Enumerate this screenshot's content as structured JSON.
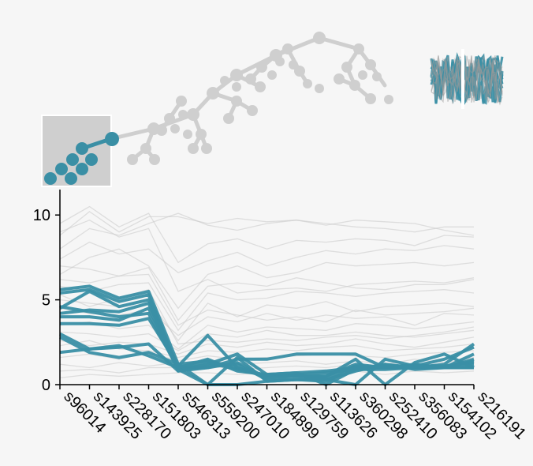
{
  "colors": {
    "highlight": "#3a8fa5",
    "context": "#c8c8c8",
    "tree": "#cfcfcf"
  },
  "chart_data": {
    "type": "line",
    "title": "",
    "xlabel": "",
    "ylabel": "",
    "ylim": [
      0,
      11.5
    ],
    "yticks": [
      0,
      5,
      10
    ],
    "categories": [
      "s96014",
      "s143925",
      "s228170",
      "s151803",
      "s546313",
      "s559200",
      "s247010",
      "s184899",
      "s129759",
      "s113626",
      "s360298",
      "s252410",
      "s356083",
      "s154102",
      "s216191"
    ],
    "highlighted_series": [
      {
        "values": [
          5.6,
          5.8,
          5.1,
          5.5,
          1.2,
          1.4,
          1.0,
          0.5,
          0.5,
          0.5,
          1.2,
          1.0,
          1.2,
          1.0,
          1.0
        ]
      },
      {
        "values": [
          5.4,
          5.6,
          4.9,
          5.3,
          0.9,
          1.2,
          1.8,
          0.6,
          0.7,
          0.8,
          1.0,
          1.1,
          1.0,
          1.0,
          1.0
        ]
      },
      {
        "values": [
          4.5,
          5.5,
          4.6,
          5.0,
          1.0,
          1.0,
          1.5,
          1.5,
          1.8,
          1.8,
          1.8,
          1.0,
          1.0,
          1.0,
          1.5
        ]
      },
      {
        "values": [
          4.2,
          4.4,
          4.3,
          4.8,
          0.8,
          1.1,
          1.2,
          0.3,
          0.3,
          0.3,
          0.8,
          1.2,
          0.9,
          1.0,
          1.8
        ]
      },
      {
        "values": [
          4.0,
          4.0,
          3.8,
          4.5,
          1.0,
          1.3,
          0.9,
          0.5,
          0.6,
          0.7,
          0.9,
          0.9,
          1.0,
          1.0,
          1.2
        ]
      },
      {
        "values": [
          3.6,
          3.6,
          3.5,
          3.9,
          1.1,
          2.9,
          1.0,
          0.5,
          0.5,
          0.4,
          1.1,
          1.0,
          1.1,
          1.1,
          1.3
        ]
      },
      {
        "values": [
          4.6,
          4.3,
          4.0,
          4.2,
          0.9,
          0.0,
          1.6,
          0.2,
          0.3,
          0.3,
          0.0,
          1.5,
          1.1,
          1.5,
          2.2
        ]
      },
      {
        "values": [
          3.0,
          2.1,
          2.2,
          2.4,
          0.8,
          1.0,
          1.3,
          0.4,
          0.5,
          0.5,
          1.5,
          0.0,
          1.3,
          1.8,
          1.0
        ]
      },
      {
        "values": [
          2.8,
          1.9,
          1.6,
          1.9,
          1.2,
          0.0,
          0.0,
          0.2,
          0.3,
          0.2,
          1.0,
          1.0,
          1.0,
          1.0,
          1.4
        ]
      },
      {
        "values": [
          1.9,
          2.1,
          2.3,
          1.7,
          1.0,
          1.5,
          0.8,
          0.6,
          0.7,
          0.0,
          0.9,
          1.2,
          1.0,
          1.2,
          2.4
        ]
      }
    ],
    "context_series": [
      {
        "values": [
          9.5,
          10.5,
          9.3,
          10.1,
          7.2,
          8.3,
          8.6,
          8.0,
          8.5,
          8.4,
          8.6,
          8.5,
          8.2,
          8.8,
          8.7
        ]
      },
      {
        "values": [
          8.8,
          10.2,
          9.0,
          9.9,
          9.9,
          9.5,
          9.8,
          9.6,
          9.7,
          9.5,
          9.3,
          9.2,
          9.0,
          9.3,
          9.3
        ]
      },
      {
        "values": [
          8.0,
          9.2,
          8.8,
          9.5,
          10.1,
          9.4,
          9.1,
          9.5,
          9.7,
          9.4,
          9.7,
          9.6,
          9.5,
          9.1,
          8.8
        ]
      },
      {
        "values": [
          7.4,
          8.4,
          7.7,
          8.0,
          6.6,
          7.3,
          7.8,
          7.0,
          7.5,
          7.9,
          7.7,
          8.0,
          7.9,
          8.2,
          8.0
        ]
      },
      {
        "values": [
          6.5,
          7.5,
          8.0,
          7.0,
          4.5,
          6.5,
          7.0,
          6.3,
          6.6,
          7.2,
          7.0,
          7.1,
          7.2,
          7.0,
          7.2
        ]
      },
      {
        "values": [
          6.2,
          6.0,
          6.4,
          6.9,
          3.8,
          5.8,
          6.0,
          5.8,
          6.3,
          6.0,
          5.7,
          5.6,
          5.9,
          5.9,
          6.2
        ]
      },
      {
        "values": [
          5.8,
          5.5,
          5.9,
          6.0,
          3.2,
          5.4,
          5.0,
          5.1,
          5.5,
          5.4,
          5.2,
          5.4,
          5.5,
          5.6,
          5.4
        ]
      },
      {
        "values": [
          5.0,
          4.8,
          4.6,
          5.0,
          2.6,
          4.8,
          4.0,
          4.7,
          4.5,
          4.9,
          4.3,
          4.6,
          4.7,
          4.8,
          4.6
        ]
      },
      {
        "values": [
          4.5,
          4.2,
          4.1,
          4.4,
          2.9,
          4.0,
          3.7,
          4.2,
          3.8,
          4.1,
          3.9,
          4.0,
          3.5,
          4.2,
          4.1
        ]
      },
      {
        "values": [
          3.5,
          3.7,
          3.3,
          3.5,
          2.1,
          3.5,
          3.1,
          3.4,
          3.3,
          3.2,
          3.6,
          3.5,
          3.3,
          3.5,
          3.7
        ]
      },
      {
        "values": [
          3.1,
          3.0,
          2.8,
          3.0,
          2.0,
          3.0,
          2.8,
          3.2,
          2.9,
          2.9,
          3.1,
          2.9,
          2.8,
          3.0,
          3.2
        ]
      },
      {
        "values": [
          2.6,
          2.3,
          2.5,
          2.4,
          1.8,
          2.4,
          2.2,
          2.5,
          2.3,
          2.4,
          2.7,
          2.4,
          2.2,
          2.5,
          2.8
        ]
      },
      {
        "values": [
          2.3,
          2.6,
          2.1,
          2.0,
          1.6,
          2.0,
          1.9,
          2.1,
          2.0,
          2.2,
          2.3,
          2.0,
          2.1,
          2.2,
          2.4
        ]
      },
      {
        "values": [
          1.6,
          1.8,
          1.5,
          1.9,
          1.4,
          1.7,
          1.5,
          1.6,
          1.7,
          1.8,
          1.7,
          1.6,
          1.8,
          1.9,
          2.0
        ]
      },
      {
        "values": [
          1.2,
          1.0,
          1.3,
          1.1,
          1.3,
          1.4,
          1.2,
          1.3,
          1.4,
          1.2,
          1.4,
          1.2,
          1.5,
          1.3,
          1.6
        ]
      },
      {
        "values": [
          0.8,
          0.9,
          0.7,
          1.0,
          1.0,
          1.1,
          0.9,
          1.0,
          1.1,
          1.0,
          1.2,
          0.9,
          1.2,
          1.1,
          1.1
        ]
      },
      {
        "values": [
          0.4,
          0.6,
          0.5,
          0.6,
          0.7,
          0.7,
          0.6,
          0.7,
          0.6,
          0.7,
          0.8,
          0.6,
          0.8,
          0.7,
          0.8
        ]
      },
      {
        "values": [
          9.0,
          9.7,
          8.7,
          9.2,
          5.5,
          6.2,
          5.4,
          5.6,
          5.7,
          5.5,
          5.9,
          6.0,
          6.1,
          6.0,
          6.3
        ]
      },
      {
        "values": [
          7.0,
          6.8,
          6.4,
          6.5,
          3.5,
          4.4,
          4.1,
          3.8,
          4.0,
          3.7,
          4.4,
          4.1,
          4.2,
          4.3,
          4.5
        ]
      },
      {
        "values": [
          5.3,
          4.6,
          5.1,
          5.6,
          2.4,
          2.6,
          2.5,
          2.7,
          2.6,
          2.8,
          2.9,
          2.7,
          2.9,
          3.1,
          3.4
        ]
      }
    ]
  }
}
